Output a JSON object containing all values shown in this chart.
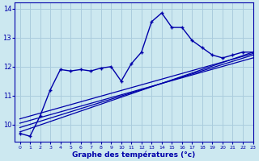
{
  "xlabel": "Graphe des températures (°c)",
  "bg_color": "#cce8f0",
  "line_color": "#0000aa",
  "grid_color": "#aaccdd",
  "hours": [
    0,
    1,
    2,
    3,
    4,
    5,
    6,
    7,
    8,
    9,
    10,
    11,
    12,
    13,
    14,
    15,
    16,
    17,
    18,
    19,
    20,
    21,
    22,
    23
  ],
  "temps": [
    9.7,
    9.6,
    10.3,
    11.2,
    11.9,
    11.85,
    11.9,
    11.85,
    11.95,
    12.0,
    11.5,
    12.1,
    12.5,
    13.55,
    13.85,
    13.35,
    13.35,
    12.9,
    12.65,
    12.4,
    12.3,
    12.4,
    12.5,
    12.5
  ],
  "reg_lines": [
    {
      "x0": 0,
      "y0": 9.75,
      "x1": 23,
      "y1": 12.5
    },
    {
      "x0": 0,
      "y0": 9.9,
      "x1": 23,
      "y1": 12.4
    },
    {
      "x0": 0,
      "y0": 10.05,
      "x1": 23,
      "y1": 12.3
    },
    {
      "x0": 0,
      "y0": 10.2,
      "x1": 23,
      "y1": 12.45
    }
  ],
  "ylim": [
    9.4,
    14.2
  ],
  "xlim": [
    -0.5,
    23
  ],
  "yticks": [
    10,
    11,
    12,
    13,
    14
  ],
  "xticks": [
    0,
    1,
    2,
    3,
    4,
    5,
    6,
    7,
    8,
    9,
    10,
    11,
    12,
    13,
    14,
    15,
    16,
    17,
    18,
    19,
    20,
    21,
    22,
    23
  ]
}
